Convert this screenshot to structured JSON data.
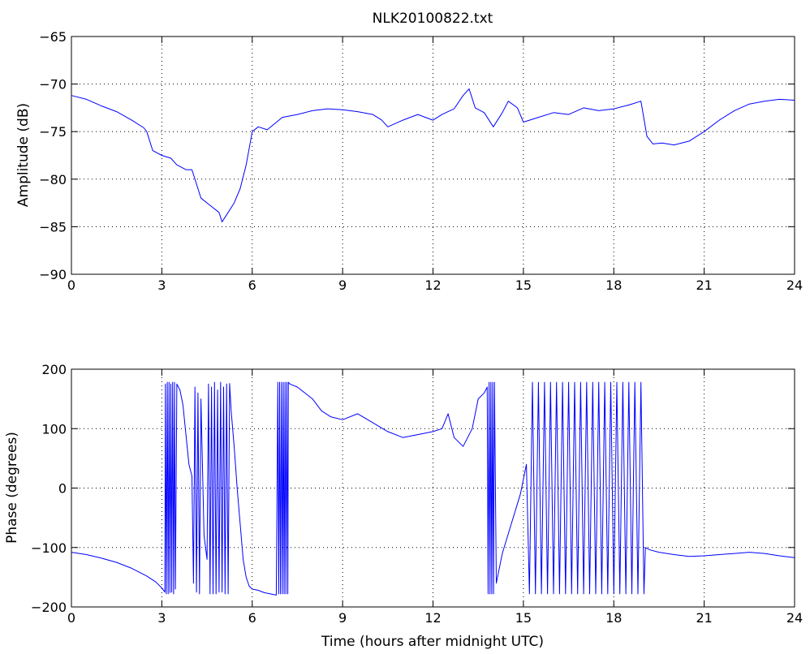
{
  "figure": {
    "title": "NLK20100822.txt"
  },
  "chart_data": [
    {
      "type": "line",
      "title": "NLK20100822.txt",
      "xlabel": "",
      "ylabel": "Amplitude (dB)",
      "xlim": [
        0,
        24
      ],
      "ylim": [
        -90,
        -65
      ],
      "xticks": [
        0,
        3,
        6,
        9,
        12,
        15,
        18,
        21,
        24
      ],
      "yticks": [
        -90,
        -85,
        -80,
        -75,
        -70,
        -65
      ],
      "grid": true,
      "line_color": "#0000ff",
      "series": [
        {
          "x": [
            0,
            0.5,
            1,
            1.5,
            2,
            2.4,
            2.5,
            2.7,
            3,
            3.3,
            3.5,
            3.8,
            4,
            4.2,
            4.3,
            4.5,
            4.7,
            4.9,
            5,
            5.1,
            5.2,
            5.4,
            5.6,
            5.8,
            6,
            6.2,
            6.5,
            7,
            7.5,
            8,
            8.5,
            9,
            9.5,
            10,
            10.3,
            10.5,
            11,
            11.5,
            12,
            12.3,
            12.7,
            13,
            13.2,
            13.4,
            13.7,
            14,
            14.3,
            14.5,
            14.8,
            15,
            15.5,
            16,
            16.5,
            17,
            17.5,
            18,
            18.5,
            18.9,
            19.1,
            19.3,
            19.6,
            20,
            20.5,
            21,
            21.5,
            22,
            22.5,
            23,
            23.5,
            24
          ],
          "values": [
            -71.2,
            -71.6,
            -72.3,
            -72.9,
            -73.8,
            -74.6,
            -75.0,
            -77.0,
            -77.5,
            -77.8,
            -78.5,
            -79.0,
            -79.0,
            -81.0,
            -82.0,
            -82.5,
            -83.0,
            -83.5,
            -84.5,
            -84.0,
            -83.5,
            -82.5,
            -81.0,
            -78.5,
            -75.0,
            -74.5,
            -74.8,
            -73.5,
            -73.2,
            -72.8,
            -72.6,
            -72.7,
            -72.9,
            -73.2,
            -73.8,
            -74.5,
            -73.8,
            -73.2,
            -73.8,
            -73.2,
            -72.6,
            -71.2,
            -70.5,
            -72.5,
            -73.0,
            -74.5,
            -73.0,
            -71.8,
            -72.5,
            -74.0,
            -73.5,
            -73.0,
            -73.2,
            -72.5,
            -72.8,
            -72.6,
            -72.2,
            -71.8,
            -75.5,
            -76.3,
            -76.2,
            -76.4,
            -76.0,
            -75.0,
            -73.8,
            -72.8,
            -72.1,
            -71.8,
            -71.6,
            -71.7
          ]
        }
      ]
    },
    {
      "type": "line",
      "title": "",
      "xlabel": "Time (hours after midnight UTC)",
      "ylabel": "Phase (degrees)",
      "xlim": [
        0,
        24
      ],
      "ylim": [
        -200,
        200
      ],
      "xticks": [
        0,
        3,
        6,
        9,
        12,
        15,
        18,
        21,
        24
      ],
      "yticks": [
        -200,
        -100,
        0,
        100,
        200
      ],
      "grid": true,
      "line_color": "#0000ff",
      "series": [
        {
          "x": [
            0,
            0.5,
            1,
            1.5,
            2,
            2.5,
            2.8,
            3.0,
            3.1,
            3.12,
            3.15,
            3.18,
            3.21,
            3.24,
            3.27,
            3.3,
            3.33,
            3.36,
            3.39,
            3.42,
            3.45,
            3.5,
            3.6,
            3.7,
            3.8,
            3.9,
            4.0,
            4.05,
            4.1,
            4.15,
            4.2,
            4.25,
            4.3,
            4.4,
            4.5,
            4.55,
            4.6,
            4.65,
            4.7,
            4.75,
            4.8,
            4.85,
            4.9,
            4.95,
            5.0,
            5.05,
            5.1,
            5.15,
            5.2,
            5.25,
            5.3,
            5.4,
            5.5,
            5.6,
            5.7,
            5.8,
            5.9,
            6.0,
            6.2,
            6.4,
            6.6,
            6.8,
            6.85,
            6.88,
            6.91,
            6.94,
            6.97,
            7.0,
            7.03,
            7.06,
            7.09,
            7.12,
            7.15,
            7.18,
            7.2,
            7.25,
            7.5,
            8.0,
            8.3,
            8.6,
            9.0,
            9.5,
            10.0,
            10.5,
            11.0,
            11.5,
            12.0,
            12.3,
            12.5,
            12.7,
            13.0,
            13.3,
            13.5,
            13.7,
            13.8,
            13.83,
            13.86,
            13.89,
            13.92,
            13.95,
            13.98,
            14.01,
            14.04,
            14.1,
            14.3,
            14.6,
            14.9,
            15.1,
            15.2,
            15.3,
            15.4,
            15.5,
            15.6,
            15.7,
            15.8,
            15.9,
            16.0,
            16.1,
            16.2,
            16.3,
            16.4,
            16.5,
            16.6,
            16.7,
            16.8,
            16.9,
            17.0,
            17.1,
            17.2,
            17.3,
            17.4,
            17.5,
            17.6,
            17.7,
            17.8,
            17.9,
            18.0,
            18.1,
            18.2,
            18.3,
            18.4,
            18.5,
            18.6,
            18.7,
            18.8,
            18.9,
            19.0,
            19.05,
            19.2,
            19.5,
            20.0,
            20.5,
            21.0,
            21.5,
            22.0,
            22.5,
            23.0,
            23.5,
            24.0
          ],
          "values": [
            -108,
            -112,
            -118,
            -125,
            -135,
            -148,
            -158,
            -168,
            -175,
            175,
            -178,
            178,
            -178,
            178,
            -176,
            175,
            -175,
            178,
            -178,
            178,
            -170,
            175,
            165,
            140,
            90,
            40,
            20,
            -160,
            170,
            -175,
            160,
            -178,
            150,
            -80,
            -120,
            175,
            -178,
            170,
            -178,
            178,
            -178,
            165,
            -175,
            178,
            -175,
            170,
            -178,
            175,
            -178,
            176,
            130,
            70,
            0,
            -60,
            -120,
            -150,
            -165,
            -170,
            -172,
            -176,
            -178,
            -180,
            178,
            -178,
            178,
            -178,
            178,
            -178,
            178,
            -178,
            178,
            -178,
            178,
            -178,
            178,
            175,
            170,
            150,
            130,
            120,
            115,
            125,
            110,
            95,
            85,
            90,
            95,
            100,
            125,
            85,
            70,
            100,
            150,
            160,
            170,
            -178,
            178,
            -178,
            178,
            -178,
            178,
            -178,
            178,
            -160,
            -110,
            -60,
            -10,
            40,
            -178,
            178,
            -178,
            178,
            -178,
            178,
            -178,
            178,
            -178,
            178,
            -178,
            178,
            -178,
            178,
            -178,
            178,
            -178,
            178,
            -178,
            178,
            -178,
            178,
            -178,
            178,
            -178,
            178,
            -178,
            178,
            -178,
            178,
            -178,
            178,
            -178,
            178,
            -178,
            178,
            -178,
            178,
            -178,
            -100,
            -104,
            -108,
            -112,
            -115,
            -114,
            -112,
            -110,
            -108,
            -110,
            -114,
            -117
          ]
        }
      ]
    }
  ]
}
